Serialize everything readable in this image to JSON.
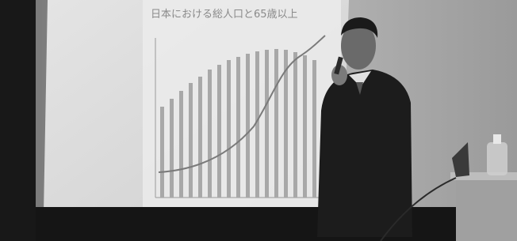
{
  "scene": {
    "slide_title": "日本における総人口と65歳以上"
  }
}
